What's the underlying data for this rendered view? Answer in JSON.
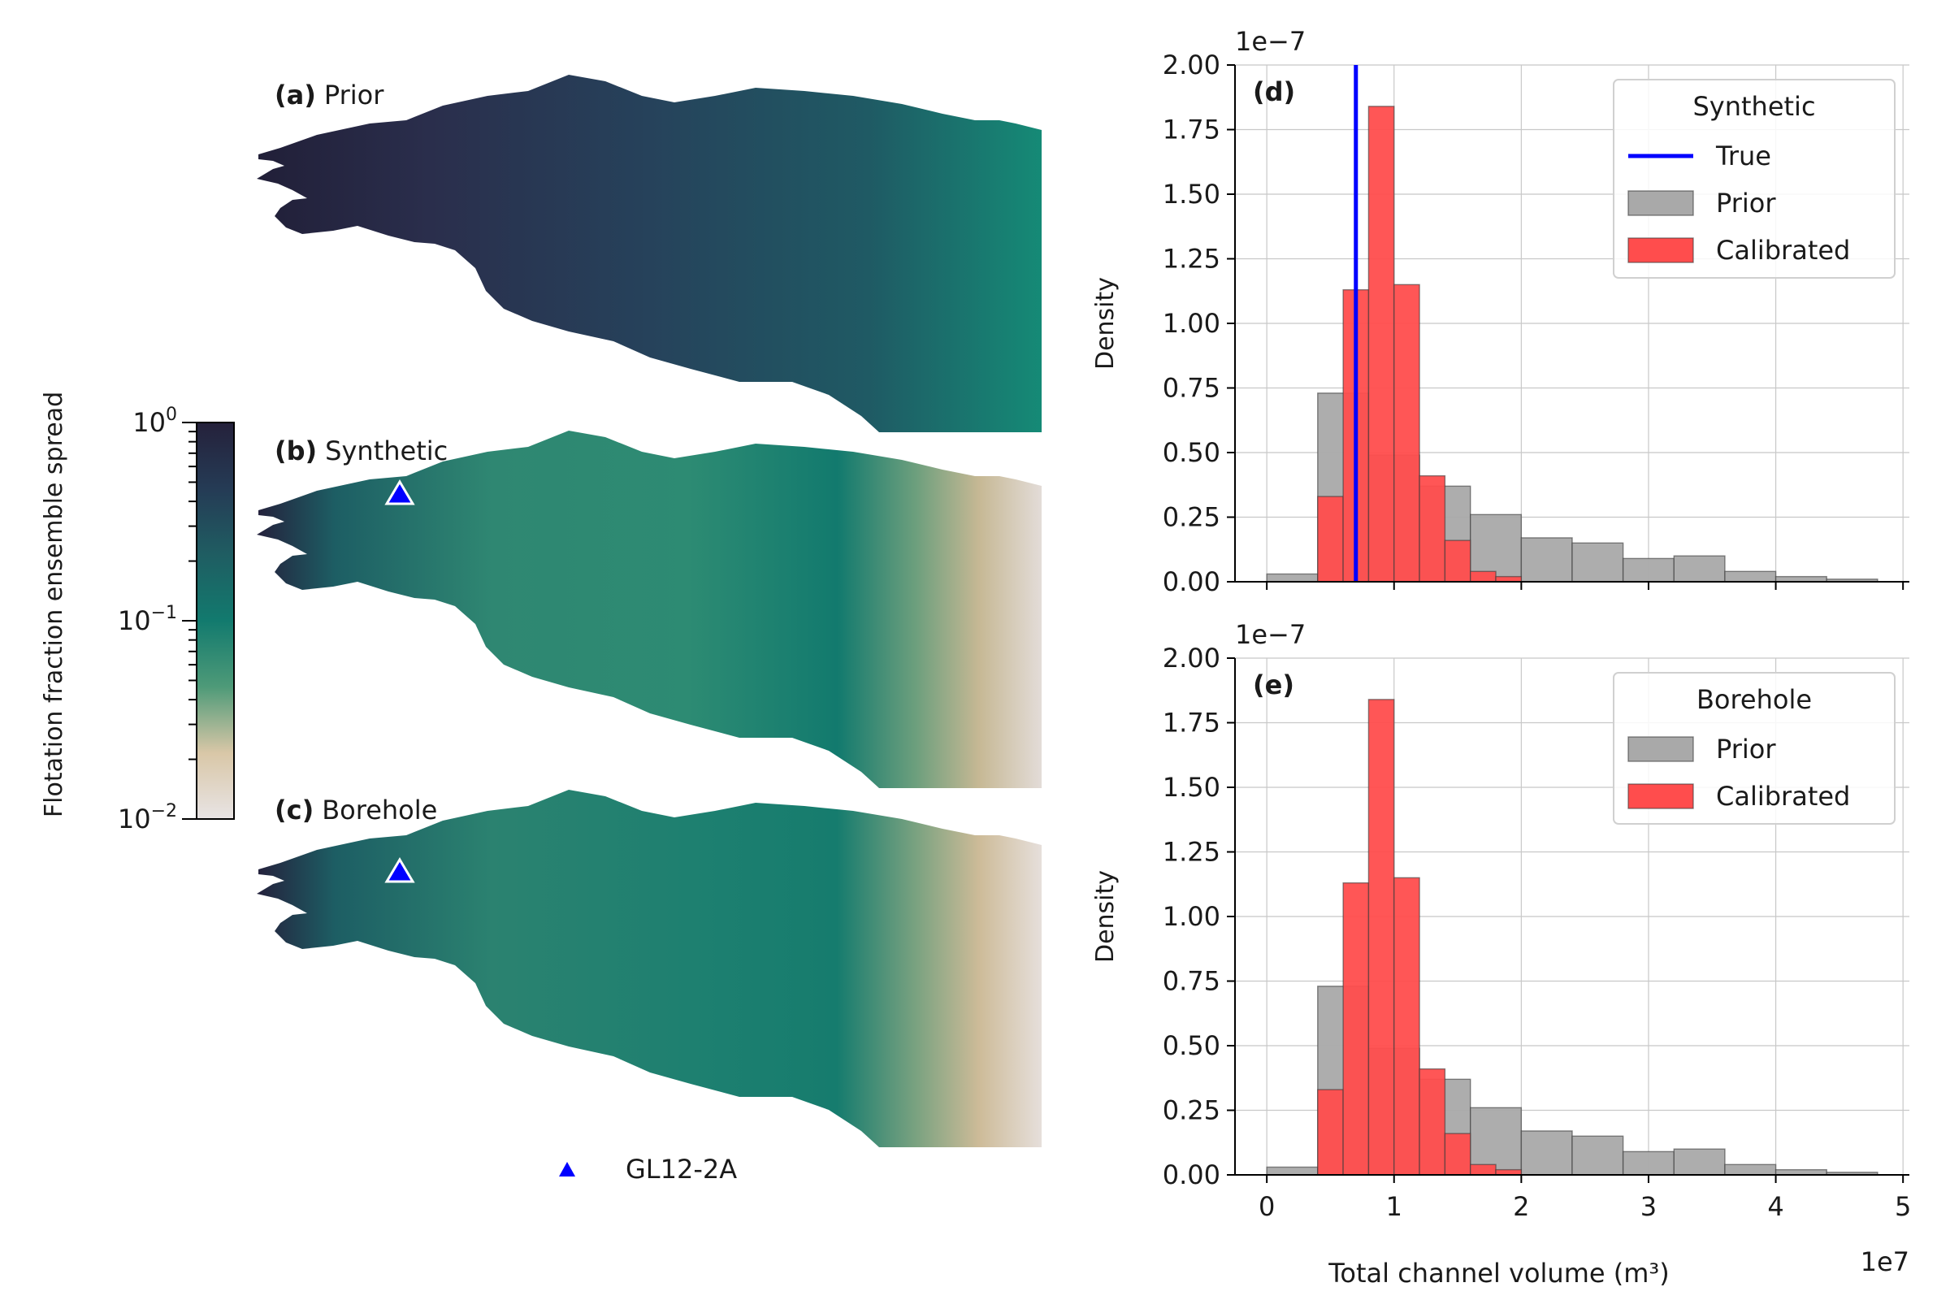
{
  "colorbar": {
    "label": "Flotation fraction ensemble spread",
    "scale": "log",
    "range": [
      0.01,
      1
    ],
    "ticks": [
      {
        "base": "10",
        "exp": "0",
        "value": 1
      },
      {
        "base": "10",
        "exp": "−1",
        "value": 0.1
      },
      {
        "base": "10",
        "exp": "−2",
        "value": 0.01
      }
    ],
    "colormap": [
      "#e8e4e5",
      "#d9c7a7",
      "#4e9a78",
      "#127a6e",
      "#1f5d62",
      "#253b55",
      "#25213b"
    ]
  },
  "maps": [
    {
      "letter": "(a)",
      "label": "Prior",
      "marker": false,
      "tone": "prior"
    },
    {
      "letter": "(b)",
      "label": "Synthetic",
      "marker": true,
      "tone": "synthetic"
    },
    {
      "letter": "(c)",
      "label": "Borehole",
      "marker": true,
      "tone": "borehole"
    }
  ],
  "map_legend": {
    "label": "GL12-2A",
    "marker_color": "#0000ff"
  },
  "chart_data": [
    {
      "type": "bar",
      "panel": "(d)",
      "xlabel": "",
      "ylabel": "Density",
      "xlim": [
        -0.25,
        5.05
      ],
      "ylim": [
        0,
        2.0
      ],
      "y_multiplier": "1e−7",
      "x_multiplier": "",
      "xticks": [
        0,
        1,
        2,
        3,
        4,
        5
      ],
      "xtick_labels": [],
      "yticks": [
        "0.00",
        "0.25",
        "0.50",
        "0.75",
        "1.00",
        "1.25",
        "1.50",
        "1.75",
        "2.00"
      ],
      "grid": true,
      "legend_title": "Synthetic",
      "legend_position": "top-right",
      "true_value": 0.7,
      "series": [
        {
          "name": "Prior",
          "color": "#a9a9a9",
          "bins": [
            [
              0,
              0.4,
              0.03
            ],
            [
              0.4,
              0.8,
              0.73
            ],
            [
              0.8,
              1.2,
              0.49
            ],
            [
              1.2,
              1.6,
              0.37
            ],
            [
              1.6,
              2.0,
              0.26
            ],
            [
              2.0,
              2.4,
              0.17
            ],
            [
              2.4,
              2.8,
              0.15
            ],
            [
              2.8,
              3.2,
              0.09
            ],
            [
              3.2,
              3.6,
              0.1
            ],
            [
              3.6,
              4.0,
              0.04
            ],
            [
              4.0,
              4.4,
              0.02
            ],
            [
              4.4,
              4.8,
              0.01
            ]
          ]
        },
        {
          "name": "Calibrated",
          "color": "#ff4d4d",
          "bins": [
            [
              0.4,
              0.6,
              0.33
            ],
            [
              0.6,
              0.8,
              1.13
            ],
            [
              0.8,
              1.0,
              1.84
            ],
            [
              1.0,
              1.2,
              1.15
            ],
            [
              1.2,
              1.4,
              0.41
            ],
            [
              1.4,
              1.6,
              0.16
            ],
            [
              1.6,
              1.8,
              0.04
            ],
            [
              1.8,
              2.0,
              0.02
            ]
          ]
        }
      ],
      "legend": [
        {
          "kind": "line",
          "name": "True",
          "color": "#0000ff"
        },
        {
          "kind": "patch",
          "name": "Prior",
          "color": "#a9a9a9"
        },
        {
          "kind": "patch",
          "name": "Calibrated",
          "color": "#ff4d4d"
        }
      ]
    },
    {
      "type": "bar",
      "panel": "(e)",
      "xlabel": "Total channel volume (m³)",
      "ylabel": "Density",
      "xlim": [
        -0.25,
        5.05
      ],
      "ylim": [
        0,
        2.0
      ],
      "y_multiplier": "1e−7",
      "x_multiplier": "1e7",
      "xticks": [
        0,
        1,
        2,
        3,
        4,
        5
      ],
      "xtick_labels": [
        "0",
        "1",
        "2",
        "3",
        "4",
        "5"
      ],
      "yticks": [
        "0.00",
        "0.25",
        "0.50",
        "0.75",
        "1.00",
        "1.25",
        "1.50",
        "1.75",
        "2.00"
      ],
      "grid": true,
      "legend_title": "Borehole",
      "legend_position": "top-right",
      "series": [
        {
          "name": "Prior",
          "color": "#a9a9a9",
          "bins": [
            [
              0,
              0.4,
              0.03
            ],
            [
              0.4,
              0.8,
              0.73
            ],
            [
              0.8,
              1.2,
              0.49
            ],
            [
              1.2,
              1.6,
              0.37
            ],
            [
              1.6,
              2.0,
              0.26
            ],
            [
              2.0,
              2.4,
              0.17
            ],
            [
              2.4,
              2.8,
              0.15
            ],
            [
              2.8,
              3.2,
              0.09
            ],
            [
              3.2,
              3.6,
              0.1
            ],
            [
              3.6,
              4.0,
              0.04
            ],
            [
              4.0,
              4.4,
              0.02
            ],
            [
              4.4,
              4.8,
              0.01
            ]
          ]
        },
        {
          "name": "Calibrated",
          "color": "#ff4d4d",
          "bins": [
            [
              0.4,
              0.6,
              0.33
            ],
            [
              0.6,
              0.8,
              1.13
            ],
            [
              0.8,
              1.0,
              1.84
            ],
            [
              1.0,
              1.2,
              1.15
            ],
            [
              1.2,
              1.4,
              0.41
            ],
            [
              1.4,
              1.6,
              0.16
            ],
            [
              1.6,
              1.8,
              0.04
            ],
            [
              1.8,
              2.0,
              0.02
            ]
          ]
        }
      ],
      "legend": [
        {
          "kind": "patch",
          "name": "Prior",
          "color": "#a9a9a9"
        },
        {
          "kind": "patch",
          "name": "Calibrated",
          "color": "#ff4d4d"
        }
      ]
    }
  ]
}
